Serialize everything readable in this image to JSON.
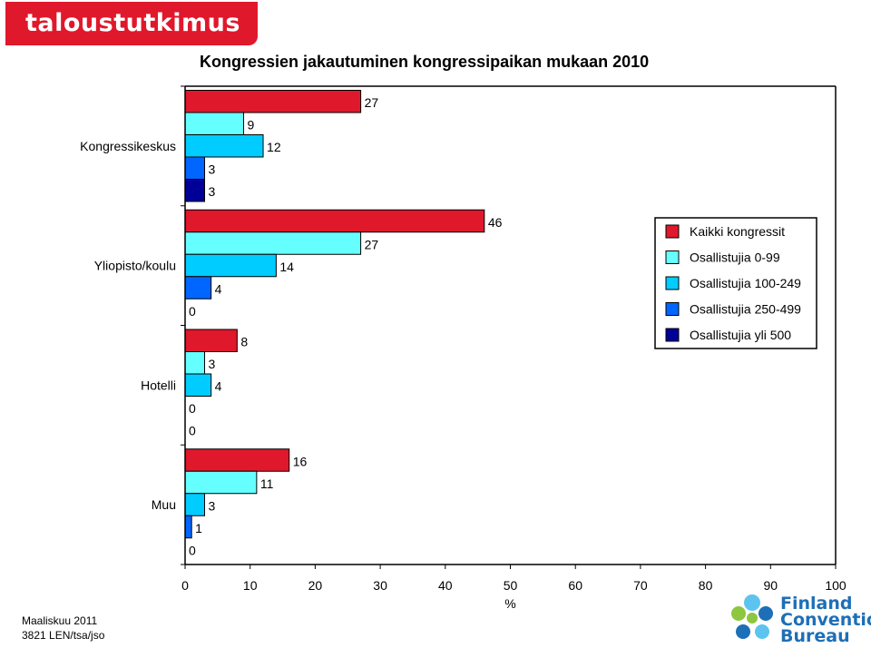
{
  "brand": {
    "name": "taloustutkimus oy",
    "color": "#e0182c"
  },
  "footer": {
    "line1": "Maaliskuu 2011",
    "line2": "3821 LEN/tsa/jso"
  },
  "partner_logo": {
    "text": [
      "Finland",
      "Convention",
      "Bureau"
    ],
    "icon": "flower-icon",
    "colors": [
      "#1d6fb7",
      "#5cc4ee",
      "#8dc63f"
    ]
  },
  "chart_data": {
    "type": "bar",
    "orientation": "horizontal",
    "title": "Kongressien jakautuminen kongressipaikan mukaan 2010",
    "xlabel": "%",
    "ylabel": "",
    "xlim": [
      0,
      100
    ],
    "xticks": [
      0,
      10,
      20,
      30,
      40,
      50,
      60,
      70,
      80,
      90,
      100
    ],
    "grid": false,
    "legend_position": "right",
    "categories": [
      "Kongressikeskus",
      "Yliopisto/koulu",
      "Hotelli",
      "Muu"
    ],
    "series": [
      {
        "name": "Kaikki kongressit",
        "color": "#e0182c",
        "values": [
          27,
          46,
          8,
          16
        ]
      },
      {
        "name": "Osallistujia 0-99",
        "color": "#66ffff",
        "values": [
          9,
          27,
          3,
          11
        ]
      },
      {
        "name": "Osallistujia 100-249",
        "color": "#00ccff",
        "values": [
          12,
          14,
          4,
          3
        ]
      },
      {
        "name": "Osallistujia 250-499",
        "color": "#0066ff",
        "values": [
          3,
          4,
          0,
          1
        ]
      },
      {
        "name": "Osallistujia yli 500",
        "color": "#000099",
        "values": [
          3,
          0,
          0,
          0
        ]
      }
    ]
  }
}
